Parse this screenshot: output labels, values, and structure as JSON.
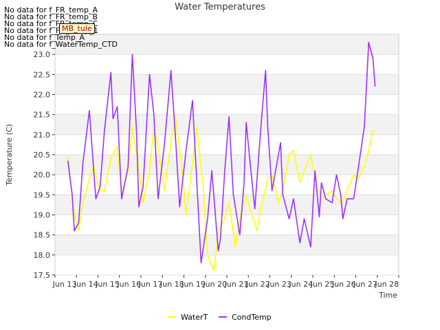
{
  "nodata_messages": [
    "No data for f_FR_temp_A",
    "No data for f_FR_temp_B",
    "No data for f_FR_temp_C",
    "No data for f_FD_Temp_1",
    "No data for f_Temp_A",
    "No data for f_WaterTemp_CTD"
  ],
  "tooltip_label": "MB_tule",
  "chart_data": {
    "type": "line",
    "title": "Water Temperatures",
    "xlabel": "Time",
    "ylabel": "Temperature (C)",
    "xlim": [
      12,
      28
    ],
    "ylim": [
      17.5,
      23.5
    ],
    "x_ticks": [
      12,
      13,
      14,
      15,
      16,
      17,
      18,
      19,
      20,
      21,
      22,
      23,
      24,
      25,
      26,
      27,
      28
    ],
    "x_tick_labels": [
      "Jun 13",
      "Jun 14",
      "Jun 15",
      "Jun 16",
      "Jun 17",
      "Jun 18",
      "Jun 19",
      "Jun 20",
      "Jun 21",
      "Jun 22",
      "Jun 23",
      "Jun 24",
      "Jun 25",
      "Jun 26",
      "Jun 27",
      "Jun 28",
      ""
    ],
    "y_ticks": [
      17.5,
      18.0,
      18.5,
      19.0,
      19.5,
      20.0,
      20.5,
      21.0,
      21.5,
      22.0,
      22.5,
      23.0
    ],
    "y_tick_labels": [
      "17.5",
      "18.0",
      "18.5",
      "19.0",
      "19.5",
      "20.0",
      "20.5",
      "21.0",
      "21.5",
      "22.0",
      "22.5",
      "23.0"
    ],
    "grid": true,
    "legend_position": "bottom-center",
    "series": [
      {
        "name": "WaterT",
        "color": "#ffff00",
        "x": [
          12.6,
          12.9,
          13.1,
          13.3,
          13.6,
          13.8,
          14.1,
          14.3,
          14.6,
          14.9,
          15.1,
          15.4,
          15.6,
          15.9,
          16.1,
          16.4,
          16.6,
          16.8,
          17.1,
          17.4,
          17.6,
          17.9,
          18.1,
          18.4,
          18.6,
          18.9,
          19.1,
          19.4,
          19.6,
          19.9,
          20.1,
          20.4,
          20.6,
          20.9,
          21.1,
          21.4,
          21.6,
          21.9,
          22.1,
          22.4,
          22.6,
          22.9,
          23.1,
          23.4,
          23.6,
          23.9,
          24.1,
          24.4,
          24.6,
          24.9,
          25.1,
          25.4,
          25.6,
          25.9,
          26.1,
          26.4,
          26.6,
          26.8,
          26.9
        ],
        "y": [
          20.45,
          19.0,
          18.6,
          19.3,
          19.9,
          20.2,
          19.6,
          19.6,
          20.4,
          20.7,
          19.5,
          20.1,
          21.2,
          20.2,
          19.3,
          20.1,
          21.2,
          20.7,
          19.6,
          20.8,
          21.5,
          20.2,
          19.0,
          20.3,
          21.2,
          19.7,
          18.0,
          17.6,
          18.6,
          18.9,
          19.3,
          18.2,
          18.9,
          19.5,
          19.1,
          18.6,
          19.2,
          19.9,
          20.0,
          19.3,
          19.6,
          20.5,
          20.6,
          19.8,
          20.1,
          20.5,
          19.9,
          19.4,
          19.5,
          19.6,
          19.4,
          19.3,
          19.6,
          20.0,
          19.9,
          20.2,
          20.6,
          21.1,
          21.1
        ]
      },
      {
        "name": "CondTemp",
        "color": "#9b30ff",
        "x": [
          12.6,
          12.8,
          12.9,
          13.1,
          13.3,
          13.6,
          13.8,
          13.9,
          14.1,
          14.3,
          14.6,
          14.7,
          14.9,
          15.1,
          15.4,
          15.6,
          15.8,
          15.9,
          16.1,
          16.4,
          16.6,
          16.8,
          17.1,
          17.4,
          17.6,
          17.8,
          18.1,
          18.4,
          18.6,
          18.8,
          19.1,
          19.3,
          19.6,
          19.7,
          19.9,
          20.1,
          20.3,
          20.6,
          20.8,
          20.9,
          21.1,
          21.3,
          21.6,
          21.8,
          21.9,
          22.1,
          22.3,
          22.5,
          22.6,
          22.9,
          23.1,
          23.4,
          23.6,
          23.9,
          24.1,
          24.3,
          24.4,
          24.6,
          24.9,
          25.1,
          25.3,
          25.4,
          25.6,
          25.9,
          26.1,
          26.4,
          26.6,
          26.8,
          26.9
        ],
        "y": [
          20.35,
          19.5,
          18.6,
          18.8,
          20.3,
          21.6,
          20.1,
          19.4,
          19.7,
          21.1,
          22.55,
          21.4,
          21.7,
          19.4,
          20.2,
          23.0,
          21.0,
          19.2,
          19.7,
          22.5,
          21.5,
          19.4,
          20.8,
          22.6,
          21.0,
          19.2,
          20.6,
          21.85,
          19.8,
          17.8,
          18.9,
          20.1,
          18.1,
          18.4,
          20.1,
          21.45,
          19.5,
          18.5,
          19.8,
          21.3,
          20.2,
          19.15,
          21.3,
          22.6,
          21.2,
          19.6,
          20.2,
          20.8,
          19.5,
          18.9,
          19.4,
          18.3,
          18.9,
          18.2,
          20.1,
          18.95,
          19.8,
          19.4,
          19.3,
          20.0,
          19.5,
          18.9,
          19.4,
          19.4,
          20.1,
          21.2,
          23.3,
          22.9,
          22.2
        ]
      }
    ]
  }
}
